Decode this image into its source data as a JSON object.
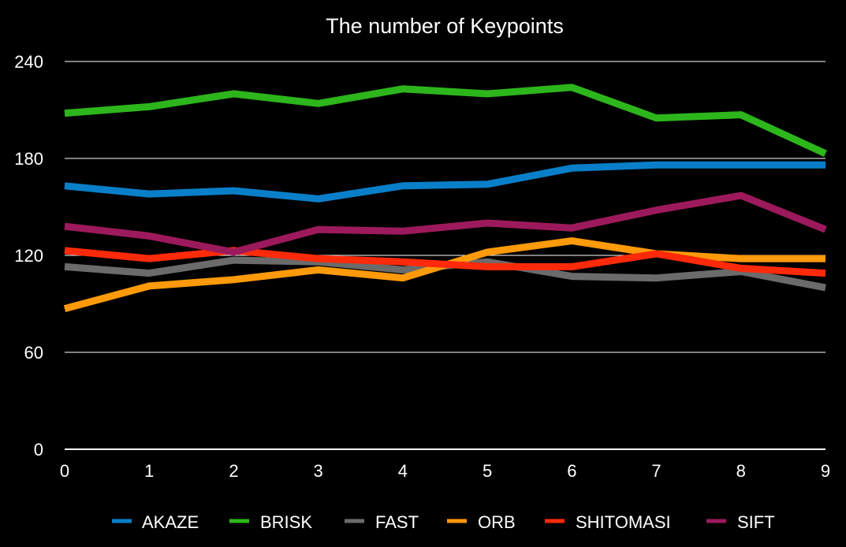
{
  "chart_data": {
    "type": "line",
    "title": "The number of Keypoints",
    "xlabel": "",
    "ylabel": "",
    "x": [
      0,
      1,
      2,
      3,
      4,
      5,
      6,
      7,
      8,
      9
    ],
    "xlim": [
      0,
      9
    ],
    "ylim": [
      0,
      240
    ],
    "yticks": [
      0,
      60,
      120,
      180,
      240
    ],
    "grid": "horizontal",
    "legend_position": "bottom",
    "series": [
      {
        "name": "AKAZE",
        "color": "#0a7fc9",
        "values": [
          163,
          158,
          160,
          155,
          163,
          164,
          174,
          176,
          176,
          176
        ]
      },
      {
        "name": "BRISK",
        "color": "#2db51c",
        "values": [
          208,
          212,
          220,
          214,
          223,
          220,
          224,
          205,
          207,
          183
        ]
      },
      {
        "name": "FAST",
        "color": "#6b6b6b",
        "values": [
          113,
          109,
          117,
          116,
          111,
          116,
          107,
          106,
          110,
          100
        ]
      },
      {
        "name": "ORB",
        "color": "#ff9a0a",
        "values": [
          87,
          101,
          105,
          111,
          106,
          122,
          129,
          121,
          118,
          118
        ]
      },
      {
        "name": "SHITOMASI",
        "color": "#ff2a0a",
        "values": [
          123,
          118,
          123,
          118,
          116,
          113,
          113,
          121,
          112,
          109
        ]
      },
      {
        "name": "SIFT",
        "color": "#9c1a5c",
        "values": [
          138,
          132,
          122,
          136,
          135,
          140,
          137,
          148,
          157,
          136
        ]
      }
    ]
  }
}
